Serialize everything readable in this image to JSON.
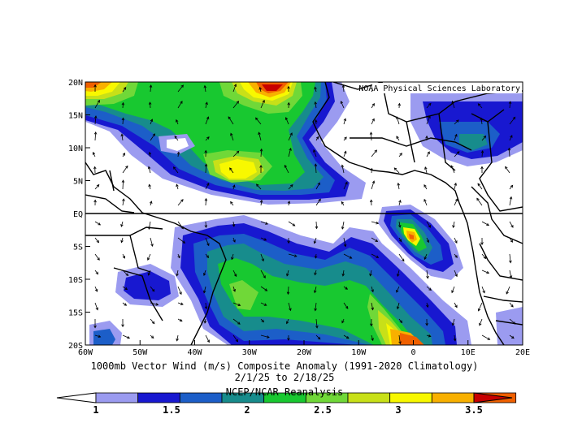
{
  "credit": "NOAA Physical Sciences Laboratory",
  "caption": {
    "line1": "1000mb Vector Wind (m/s) Composite Anomaly (1991-2020 Climatology)",
    "line2": "2/1/25 to 2/18/25",
    "line3": "NCEP/NCAR Reanalysis"
  },
  "map": {
    "lon_range": [
      -60,
      20
    ],
    "lat_range": [
      -20,
      20
    ],
    "x_tick_labels": [
      "60W",
      "50W",
      "40W",
      "30W",
      "20W",
      "10W",
      "0",
      "10E",
      "20E"
    ],
    "y_tick_labels": [
      "20N",
      "15N",
      "10N",
      "5N",
      "EQ",
      "5S",
      "10S",
      "15S",
      "20S"
    ],
    "equator_line": true
  },
  "colorbar": {
    "tick_labels": [
      "1",
      "1.5",
      "2",
      "2.5",
      "3",
      "3.5"
    ],
    "colors": [
      "#9b9bf0",
      "#1818d0",
      "#1c5ec8",
      "#178c8c",
      "#18c830",
      "#70d838",
      "#c8e018",
      "#f8f800",
      "#f8b000",
      "#f06000",
      "#c80000"
    ]
  }
}
